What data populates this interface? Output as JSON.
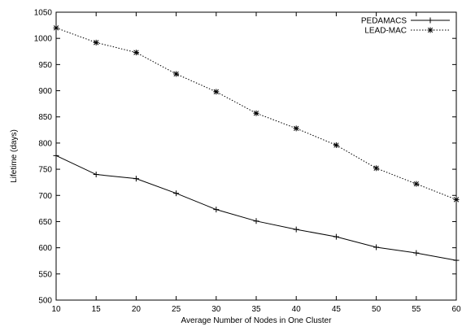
{
  "chart_data": {
    "type": "line",
    "title": "",
    "xlabel": "Average Number of Nodes in One Cluster",
    "ylabel": "Lifetime (days)",
    "x": [
      10,
      15,
      20,
      25,
      30,
      35,
      40,
      45,
      50,
      55,
      60
    ],
    "xlim": [
      10,
      60
    ],
    "ylim": [
      500,
      1050
    ],
    "xticks": [
      10,
      15,
      20,
      25,
      30,
      35,
      40,
      45,
      50,
      55,
      60
    ],
    "yticks": [
      500,
      550,
      600,
      650,
      700,
      750,
      800,
      850,
      900,
      950,
      1000,
      1050
    ],
    "grid": false,
    "legend_position": "top-right",
    "series": [
      {
        "name": "PEDAMACS",
        "marker": "plus",
        "line_style": "solid",
        "color": "#000000",
        "values": [
          776,
          740,
          732,
          704,
          673,
          651,
          635,
          621,
          601,
          590,
          576
        ]
      },
      {
        "name": "LEAD-MAC",
        "marker": "star",
        "line_style": "dotted",
        "color": "#000000",
        "values": [
          1020,
          992,
          973,
          932,
          898,
          857,
          828,
          796,
          752,
          722,
          692
        ]
      }
    ]
  }
}
